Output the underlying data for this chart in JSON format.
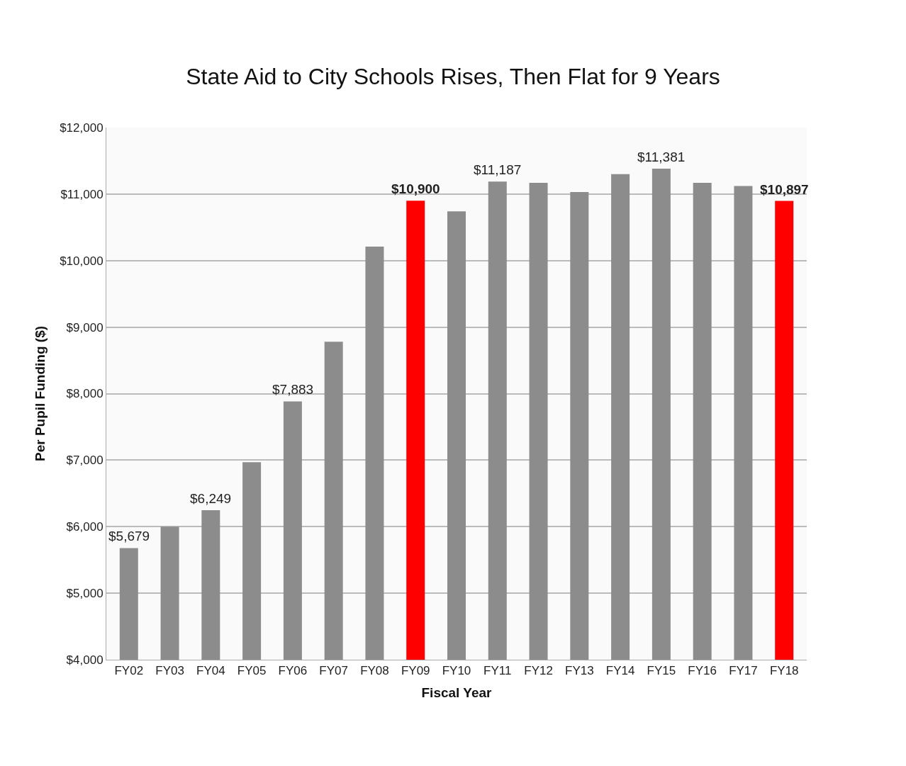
{
  "chart_data": {
    "type": "bar",
    "title": "State Aid to City Schools Rises, Then Flat for 9 Years",
    "xlabel": "Fiscal Year",
    "ylabel": "Per Pupil Funding ($)",
    "categories": [
      "FY02",
      "FY03",
      "FY04",
      "FY05",
      "FY06",
      "FY07",
      "FY08",
      "FY09",
      "FY10",
      "FY11",
      "FY12",
      "FY13",
      "FY14",
      "FY15",
      "FY16",
      "FY17",
      "FY18"
    ],
    "values": [
      5679,
      6000,
      6249,
      6970,
      7883,
      8780,
      10210,
      10900,
      10740,
      11187,
      11170,
      11030,
      11300,
      11381,
      11170,
      11120,
      10897
    ],
    "value_labels": [
      "$5,679",
      null,
      "$6,249",
      null,
      "$7,883",
      null,
      null,
      "$10,900",
      null,
      "$11,187",
      null,
      null,
      null,
      "$11,381",
      null,
      null,
      "$10,897"
    ],
    "colors": [
      "#8c8c8c",
      "#8c8c8c",
      "#8c8c8c",
      "#8c8c8c",
      "#8c8c8c",
      "#8c8c8c",
      "#8c8c8c",
      "#ff0000",
      "#8c8c8c",
      "#8c8c8c",
      "#8c8c8c",
      "#8c8c8c",
      "#8c8c8c",
      "#8c8c8c",
      "#8c8c8c",
      "#8c8c8c",
      "#ff0000"
    ],
    "ylim": [
      4000,
      12000
    ],
    "yticks": [
      {
        "value": 4000,
        "label": "$4,000"
      },
      {
        "value": 5000,
        "label": "$5,000"
      },
      {
        "value": 6000,
        "label": "$6,000"
      },
      {
        "value": 7000,
        "label": "$7,000"
      },
      {
        "value": 8000,
        "label": "$8,000"
      },
      {
        "value": 9000,
        "label": "$9,000"
      },
      {
        "value": 10000,
        "label": "$10,000"
      },
      {
        "value": 11000,
        "label": "$11,000"
      },
      {
        "value": 12000,
        "label": "$12,000"
      }
    ],
    "grid": "y",
    "legend": false
  }
}
